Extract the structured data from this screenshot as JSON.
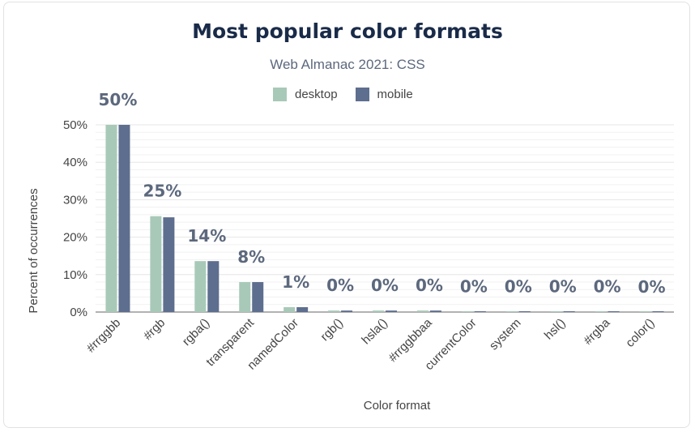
{
  "chart_data": {
    "type": "bar",
    "title": "Most popular color formats",
    "subtitle": "Web Almanac 2021: CSS",
    "xlabel": "Color format",
    "ylabel": "Percent of occurrences",
    "ylim": [
      0,
      50
    ],
    "yticks": [
      "0%",
      "10%",
      "20%",
      "30%",
      "40%",
      "50%"
    ],
    "categories": [
      "#rrggbb",
      "#rgb",
      "rgba()",
      "transparent",
      "namedColor",
      "rgb()",
      "hsla()",
      "#rrggbbaa",
      "currentColor",
      "system",
      "hsl()",
      "#rgba",
      "color()"
    ],
    "series": [
      {
        "name": "desktop",
        "color": "#a8c9b8",
        "values": [
          50.0,
          25.6,
          13.6,
          8.0,
          1.3,
          0.4,
          0.4,
          0.4,
          0.1,
          0.1,
          0.1,
          0.1,
          0.0
        ]
      },
      {
        "name": "mobile",
        "color": "#5e6e8e",
        "values": [
          50.0,
          25.3,
          13.6,
          8.0,
          1.3,
          0.4,
          0.4,
          0.4,
          0.1,
          0.1,
          0.1,
          0.1,
          0.0
        ]
      }
    ],
    "data_labels": [
      "50%",
      "25%",
      "14%",
      "8%",
      "1%",
      "0%",
      "0%",
      "0%",
      "0%",
      "0%",
      "0%",
      "0%",
      "0%"
    ],
    "legend_position": "top-center",
    "grid": true
  }
}
